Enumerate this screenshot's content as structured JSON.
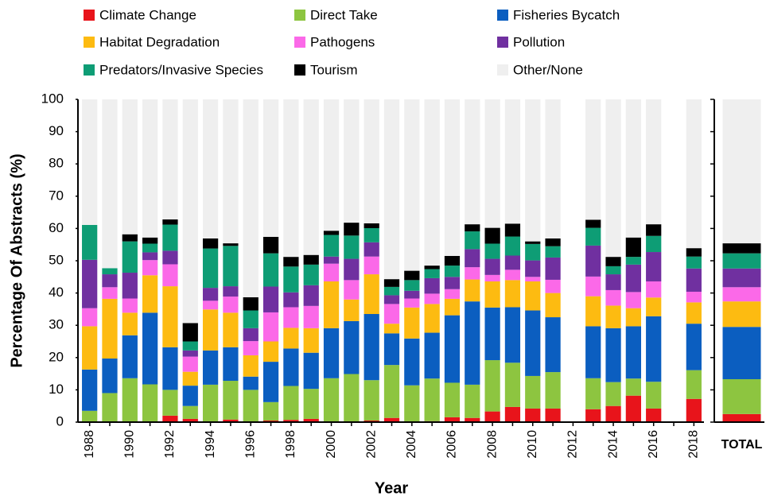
{
  "chart_data": {
    "type": "stacked-bar",
    "x_label": "Year",
    "y_label": "Percentage Of Abstracts (%)",
    "categories": [
      "1988",
      null,
      "1990",
      null,
      "1992",
      null,
      "1994",
      null,
      "1996",
      null,
      "1998",
      null,
      "2000",
      null,
      "2002",
      null,
      "2004",
      null,
      "2006",
      null,
      "2008",
      null,
      "2010",
      null,
      "2012",
      null,
      "2014",
      null,
      "2016",
      null,
      "2018"
    ],
    "total_category": "TOTAL",
    "ylim": [
      0,
      100
    ],
    "yticks": [
      0,
      10,
      20,
      30,
      40,
      50,
      60,
      70,
      80,
      90,
      100
    ],
    "series": [
      {
        "name": "Climate Change",
        "color": "#e8141b",
        "values": [
          0,
          0,
          0,
          0,
          2,
          1,
          0,
          0.8,
          0,
          0.5,
          0.7,
          1,
          0,
          0,
          0.5,
          1.3,
          0,
          0.3,
          1.5,
          1.3,
          3.3,
          4.7,
          4.2,
          4.2,
          null,
          4,
          5,
          8.2,
          4.2,
          null,
          7.2
        ],
        "total": 2.5
      },
      {
        "name": "Direct Take",
        "color": "#8dc540",
        "values": [
          3.5,
          9,
          13.6,
          11.7,
          8,
          4,
          11.6,
          12,
          10,
          5.7,
          10.5,
          9.3,
          13.6,
          14.9,
          12.5,
          16.4,
          11.4,
          13.2,
          10.7,
          10.3,
          15.9,
          13.7,
          10.1,
          11.3,
          null,
          9.6,
          7.4,
          5.3,
          8.3,
          null,
          8.9
        ],
        "total": 10.8
      },
      {
        "name": "Fisheries Bycatch",
        "color": "#0b5ec0",
        "values": [
          12.8,
          10.7,
          13.3,
          22.2,
          13.2,
          6.3,
          10.6,
          10.4,
          4.1,
          12.5,
          11.6,
          11.2,
          15.5,
          16.4,
          20.5,
          9.8,
          14.5,
          14.2,
          20.9,
          25.8,
          16.3,
          17.2,
          20.3,
          17,
          null,
          16.1,
          16.7,
          16.2,
          20.3,
          null,
          14.4
        ],
        "total": 16.2
      },
      {
        "name": "Habitat Degradation",
        "color": "#fdbb11",
        "values": [
          13.4,
          18.5,
          7,
          11.6,
          18.9,
          4.3,
          12.7,
          10.7,
          6.6,
          6.3,
          6.4,
          7.6,
          14.5,
          6.7,
          12.3,
          3,
          9.6,
          8.9,
          5.1,
          6.8,
          8.1,
          8.4,
          9,
          7.5,
          null,
          9.3,
          7,
          5.6,
          5.8,
          null,
          6.6
        ],
        "total": 7.9
      },
      {
        "name": "Pathogens",
        "color": "#fb69e8",
        "values": [
          5.6,
          3.6,
          4.4,
          4.7,
          6.8,
          4.7,
          2.7,
          5,
          4.4,
          9,
          6.4,
          6.9,
          5.5,
          6,
          5.5,
          6.1,
          2.8,
          3.2,
          3,
          3.8,
          2,
          3.2,
          1.4,
          4.1,
          null,
          6.1,
          4.8,
          5,
          5,
          null,
          3.3
        ],
        "total": 4.4
      },
      {
        "name": "Pollution",
        "color": "#7030a0",
        "values": [
          15,
          4,
          8,
          2.4,
          4.2,
          1.9,
          4,
          3.2,
          4,
          8,
          4.6,
          6.4,
          2.2,
          6.6,
          4.4,
          2.7,
          2.4,
          4.8,
          3.8,
          5.6,
          5,
          4.4,
          5.1,
          6.9,
          null,
          9.6,
          4.9,
          8.5,
          9.1,
          null,
          7.2
        ],
        "total": 5.8
      },
      {
        "name": "Predators/Invasive Species",
        "color": "#0e9d75",
        "values": [
          10.8,
          1.9,
          9.7,
          2.7,
          8.1,
          2.8,
          12.2,
          12.5,
          5.5,
          10.3,
          8,
          6.4,
          6.7,
          7.2,
          4.4,
          2.6,
          3.3,
          2.8,
          3.5,
          5.5,
          4.7,
          5.9,
          5.1,
          3.5,
          null,
          5.5,
          2.5,
          2.4,
          5,
          null,
          3.7
        ],
        "total": 4.7
      },
      {
        "name": "Tourism",
        "color": "#000000",
        "values": [
          0,
          0,
          2.2,
          1.9,
          1.6,
          5.7,
          3.1,
          0.8,
          4.1,
          5.1,
          3,
          3,
          1.3,
          4,
          1.5,
          2.4,
          2.9,
          1.1,
          3,
          2.2,
          4.9,
          4,
          0.8,
          2.4,
          null,
          2.5,
          2.9,
          6,
          3.6,
          null,
          2.6
        ],
        "total": 3.1
      },
      {
        "name": "Other/None",
        "color": "#efefef",
        "values": [
          38.9,
          52.3,
          41.8,
          42.8,
          37.2,
          69.3,
          43.1,
          44.6,
          61.3,
          42.6,
          48.8,
          48.2,
          40.7,
          38.2,
          38.4,
          55.7,
          53.1,
          51.5,
          48.5,
          38.7,
          39.8,
          38.5,
          44,
          43.1,
          null,
          37.3,
          48.8,
          42.8,
          38.7,
          null,
          46.1
        ],
        "total": 44.6
      }
    ]
  }
}
